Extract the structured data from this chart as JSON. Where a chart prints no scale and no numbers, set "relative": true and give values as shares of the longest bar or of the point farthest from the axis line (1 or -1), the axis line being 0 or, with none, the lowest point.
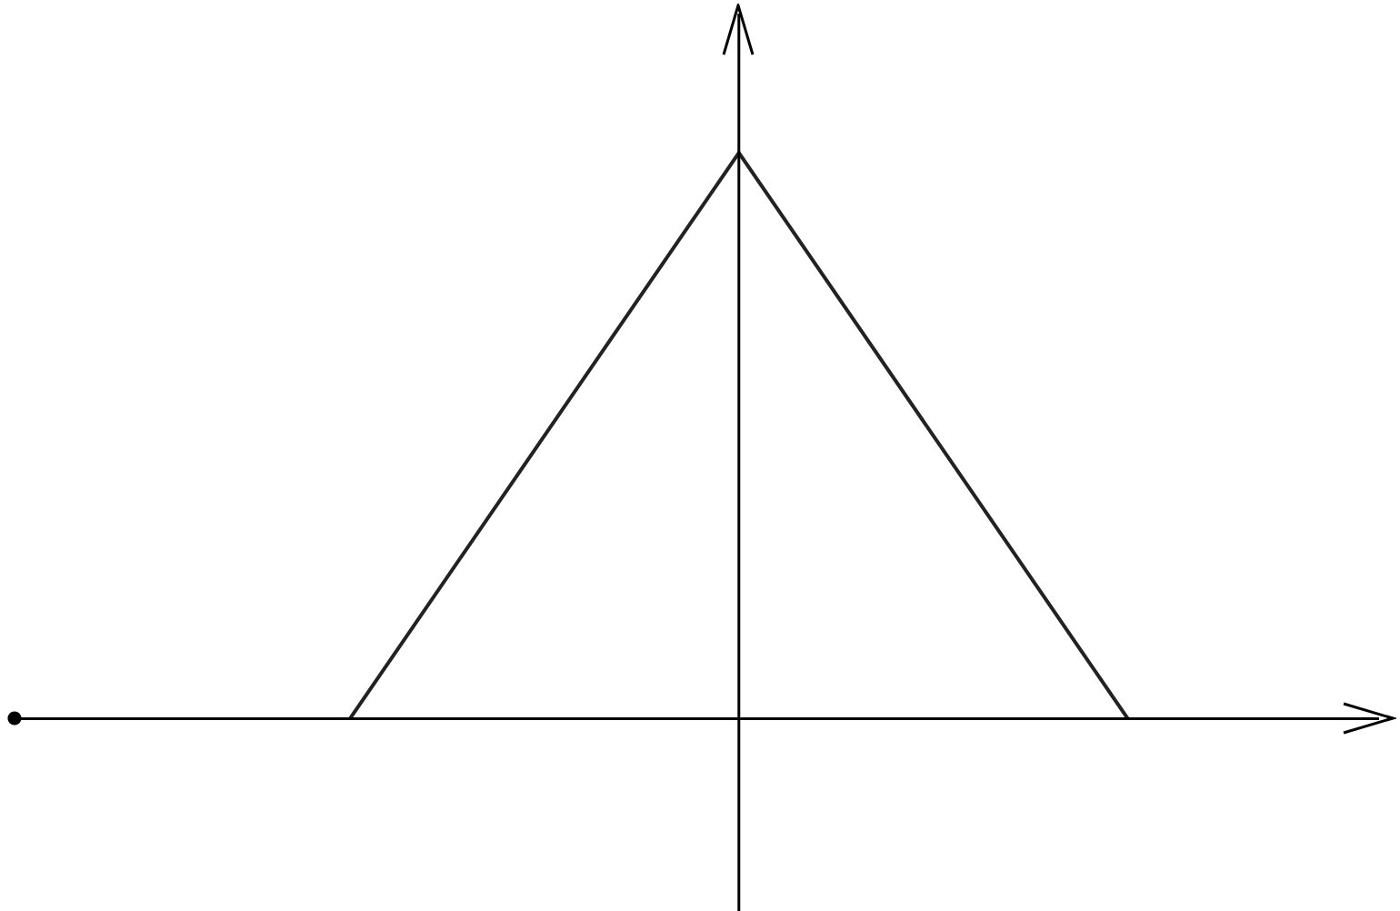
{
  "chart_data": {
    "type": "line",
    "relative": true,
    "categories": [
      null,
      null,
      null
    ],
    "series": [
      {
        "color": "#222222",
        "values": [
          0,
          1,
          0
        ]
      }
    ],
    "marker": "none",
    "line_style": "solid"
  }
}
